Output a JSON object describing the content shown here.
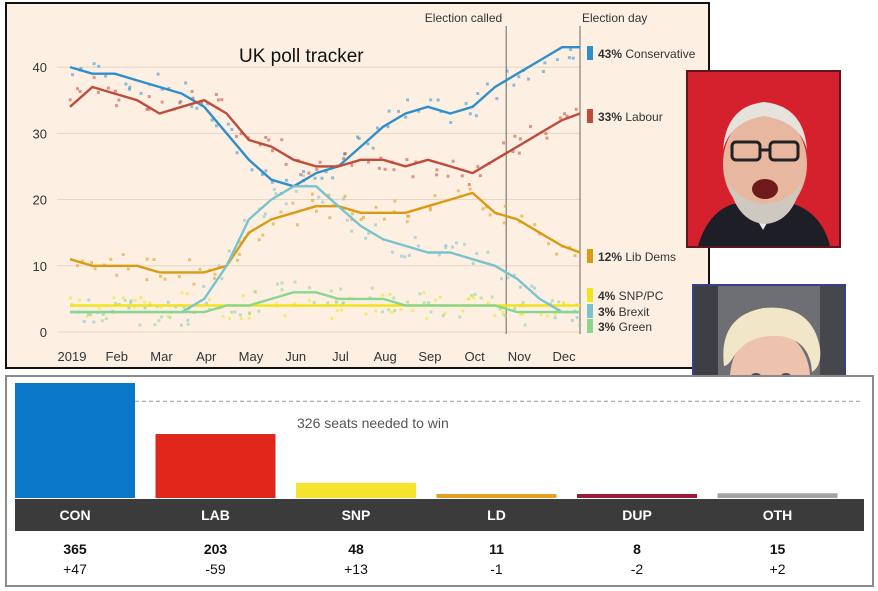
{
  "chart_data": [
    {
      "type": "line",
      "title": "UK poll tracker",
      "xlabel": "",
      "ylabel": "",
      "ylim": [
        0,
        45
      ],
      "yticks": [
        0,
        10,
        20,
        30,
        40
      ],
      "xticks": [
        "2019",
        "Feb",
        "Mar",
        "Apr",
        "May",
        "Jun",
        "Jul",
        "Aug",
        "Sep",
        "Oct",
        "Nov",
        "Dec"
      ],
      "annotations": [
        "Election called",
        "Election day"
      ],
      "x_months": [
        0,
        0.5,
        1,
        1.5,
        2,
        2.5,
        3,
        3.5,
        4,
        4.5,
        5,
        5.5,
        6,
        6.5,
        7,
        7.5,
        8,
        8.5,
        9,
        9.5,
        10,
        10.5,
        11,
        11.4
      ],
      "series": [
        {
          "name": "Conservative",
          "label": "43% Conservative",
          "color": "#2f8fca",
          "values": [
            40,
            39,
            39,
            38,
            37,
            36,
            34,
            30,
            26,
            23,
            22,
            24,
            25,
            28,
            31,
            33,
            34,
            33,
            34,
            37,
            39,
            41,
            43,
            43
          ]
        },
        {
          "name": "Labour",
          "label": "33% Labour",
          "color": "#bf4b3a",
          "values": [
            34,
            37,
            36,
            35,
            33,
            34,
            35,
            33,
            29,
            28,
            26,
            25,
            25,
            26,
            26,
            25,
            26,
            25,
            24,
            26,
            28,
            30,
            32,
            33
          ]
        },
        {
          "name": "Lib Dems",
          "label": "12% Lib Dems",
          "color": "#d99a14",
          "values": [
            11,
            10,
            10,
            10,
            9,
            9,
            9,
            10,
            15,
            17,
            18,
            19,
            19,
            18,
            18,
            18,
            19,
            20,
            21,
            18,
            17,
            15,
            13,
            12
          ]
        },
        {
          "name": "SNP/PC",
          "label": "4% SNP/PC",
          "color": "#f1e31c",
          "values": [
            4,
            4,
            4,
            4,
            4,
            4,
            4,
            4,
            4,
            4,
            4,
            4,
            4,
            4,
            4,
            4,
            4,
            4,
            4,
            4,
            4,
            4,
            4,
            4
          ]
        },
        {
          "name": "Brexit",
          "label": "3% Brexit",
          "color": "#79c3cc",
          "values": [
            3,
            3,
            3,
            3,
            3,
            3,
            5,
            10,
            17,
            20,
            22,
            22,
            19,
            16,
            14,
            13,
            12,
            12,
            11,
            10,
            8,
            5,
            3,
            3
          ]
        },
        {
          "name": "Green",
          "label": "3% Green",
          "color": "#8bd68e",
          "values": [
            3,
            3,
            3,
            3,
            3,
            3,
            3,
            4,
            4,
            5,
            6,
            6,
            5,
            5,
            5,
            4,
            4,
            4,
            4,
            4,
            3,
            3,
            3,
            3
          ]
        }
      ]
    },
    {
      "type": "bar",
      "title": "",
      "categories": [
        "CON",
        "LAB",
        "SNP",
        "LD",
        "DUP",
        "OTH"
      ],
      "values": [
        365,
        203,
        48,
        11,
        8,
        15
      ],
      "changes": [
        "+47",
        "-59",
        "+13",
        "-1",
        "-2",
        "+2"
      ],
      "colors": [
        "#0a77c9",
        "#e1271b",
        "#f5e42d",
        "#e3a021",
        "#9b1b36",
        "#a3a3a3"
      ],
      "majority_line": 326,
      "majority_label": "326 seats needed to win",
      "ylim": [
        0,
        365
      ]
    }
  ],
  "photos": {
    "top": {
      "name": "jeremy-corbyn-photo"
    },
    "bottom": {
      "name": "boris-johnson-photo"
    }
  }
}
